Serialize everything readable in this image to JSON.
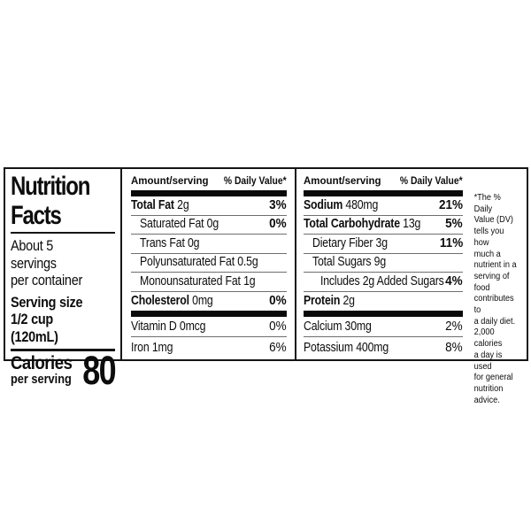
{
  "palette": {
    "text": "#0d0d0d",
    "bar": "#0a0a0a",
    "hairline": "#6e6e6e",
    "background": "#ffffff"
  },
  "label": {
    "title": "Nutrition\nFacts",
    "servings": "About 5 servings\nper container",
    "serving_size_label": "Serving size",
    "serving_size_value": "1/2 cup (120mL)",
    "calories_label": "Calories",
    "calories_sublabel": "per serving",
    "calories_value": "80",
    "columns": [
      {
        "header_amount": "Amount/serving",
        "header_dv": "% Daily Value*",
        "rows": [
          {
            "name": "Total Fat",
            "amount": "2g",
            "dv": "3%"
          },
          {
            "name": "Saturated Fat",
            "amount": "0g",
            "dv": "0%"
          },
          {
            "name": "Trans Fat",
            "amount": "0g",
            "dv": ""
          },
          {
            "name": "Polyunsaturated Fat",
            "amount": "0.5g",
            "dv": ""
          },
          {
            "name": "Monounsaturated Fat",
            "amount": "1g",
            "dv": ""
          },
          {
            "name": "Cholesterol",
            "amount": "0mg",
            "dv": "0%"
          }
        ],
        "vitamins": [
          {
            "name": "Vitamin D",
            "amount": "0mcg",
            "dv": "0%"
          },
          {
            "name": "Iron",
            "amount": "1mg",
            "dv": "6%"
          }
        ]
      },
      {
        "header_amount": "Amount/serving",
        "header_dv": "% Daily Value*",
        "rows": [
          {
            "name": "Sodium",
            "amount": "480mg",
            "dv": "21%"
          },
          {
            "name": "Total Carbohydrate",
            "amount": "13g",
            "dv": "5%"
          },
          {
            "name": "Dietary Fiber",
            "amount": "3g",
            "dv": "11%"
          },
          {
            "name": "Total Sugars",
            "amount": "9g",
            "dv": ""
          },
          {
            "name": "Includes 2g Added Sugars",
            "amount": "",
            "dv": "4%"
          },
          {
            "name": "Protein",
            "amount": "2g",
            "dv": ""
          }
        ],
        "vitamins": [
          {
            "name": "Calcium",
            "amount": "30mg",
            "dv": "2%"
          },
          {
            "name": "Potassium",
            "amount": "400mg",
            "dv": "8%"
          }
        ]
      }
    ],
    "footnote": "*The % Daily\nValue (DV)\ntells you how\nmuch a\nnutrient in a\nserving of food\ncontributes to\na daily diet.\n2,000 calories\na day is used\nfor general\nnutrition\nadvice."
  }
}
